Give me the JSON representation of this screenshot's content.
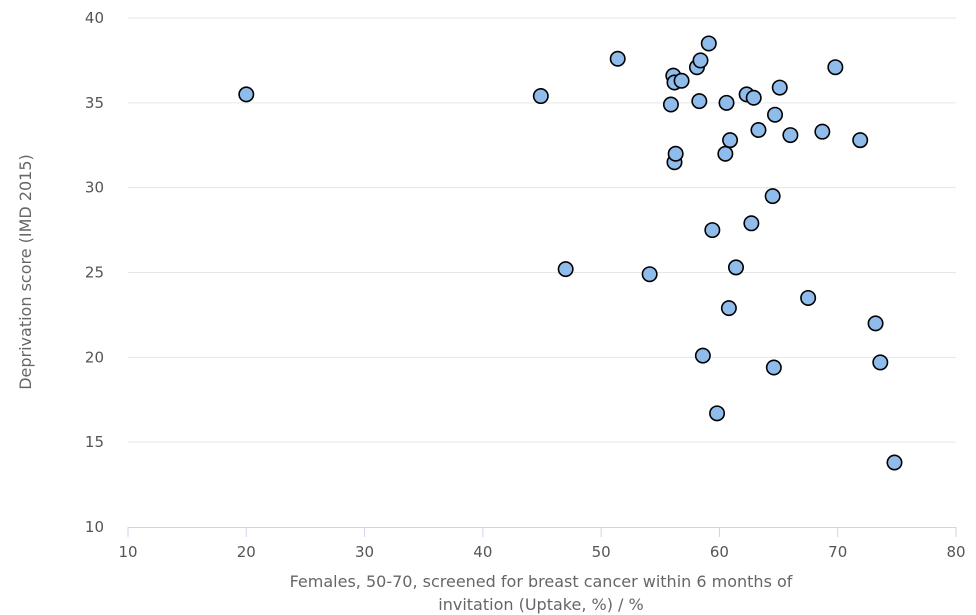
{
  "chart_data": {
    "type": "scatter",
    "title": "",
    "xlabel_lines": [
      "Females, 50-70, screened for breast cancer within 6 months of",
      "invitation (Uptake, %) / %"
    ],
    "ylabel": "Deprivation score (IMD 2015)",
    "xlim": [
      10,
      80
    ],
    "ylim": [
      10,
      40
    ],
    "x_ticks": [
      10,
      20,
      30,
      40,
      50,
      60,
      70,
      80
    ],
    "y_ticks": [
      10,
      15,
      20,
      25,
      30,
      35,
      40
    ],
    "grid": "horizontal",
    "colors": {
      "marker_fill": "#8fbcea",
      "marker_stroke": "#000000",
      "grid": "#e6e6e6",
      "axis": "#ccd6eb"
    },
    "points": [
      {
        "x": 20.0,
        "y": 35.5
      },
      {
        "x": 44.9,
        "y": 35.4
      },
      {
        "x": 47.0,
        "y": 25.2
      },
      {
        "x": 51.4,
        "y": 37.6
      },
      {
        "x": 54.1,
        "y": 24.9
      },
      {
        "x": 55.9,
        "y": 34.9
      },
      {
        "x": 56.1,
        "y": 36.6
      },
      {
        "x": 56.2,
        "y": 36.2
      },
      {
        "x": 56.2,
        "y": 31.5
      },
      {
        "x": 56.3,
        "y": 32.0
      },
      {
        "x": 56.8,
        "y": 36.3
      },
      {
        "x": 58.1,
        "y": 37.1
      },
      {
        "x": 58.3,
        "y": 35.1
      },
      {
        "x": 58.4,
        "y": 37.5
      },
      {
        "x": 58.6,
        "y": 20.1
      },
      {
        "x": 59.1,
        "y": 38.5
      },
      {
        "x": 59.4,
        "y": 27.5
      },
      {
        "x": 59.8,
        "y": 16.7
      },
      {
        "x": 60.5,
        "y": 32.0
      },
      {
        "x": 60.6,
        "y": 35.0
      },
      {
        "x": 60.8,
        "y": 22.9
      },
      {
        "x": 60.9,
        "y": 32.8
      },
      {
        "x": 61.4,
        "y": 25.3
      },
      {
        "x": 62.3,
        "y": 35.5
      },
      {
        "x": 62.7,
        "y": 27.9
      },
      {
        "x": 62.9,
        "y": 35.3
      },
      {
        "x": 63.3,
        "y": 33.4
      },
      {
        "x": 64.5,
        "y": 29.5
      },
      {
        "x": 64.6,
        "y": 19.4
      },
      {
        "x": 64.7,
        "y": 34.3
      },
      {
        "x": 65.1,
        "y": 35.9
      },
      {
        "x": 66.0,
        "y": 33.1
      },
      {
        "x": 67.5,
        "y": 23.5
      },
      {
        "x": 68.7,
        "y": 33.3
      },
      {
        "x": 69.8,
        "y": 37.1
      },
      {
        "x": 71.9,
        "y": 32.8
      },
      {
        "x": 73.2,
        "y": 22.0
      },
      {
        "x": 73.6,
        "y": 19.7
      },
      {
        "x": 74.8,
        "y": 13.8
      }
    ]
  }
}
